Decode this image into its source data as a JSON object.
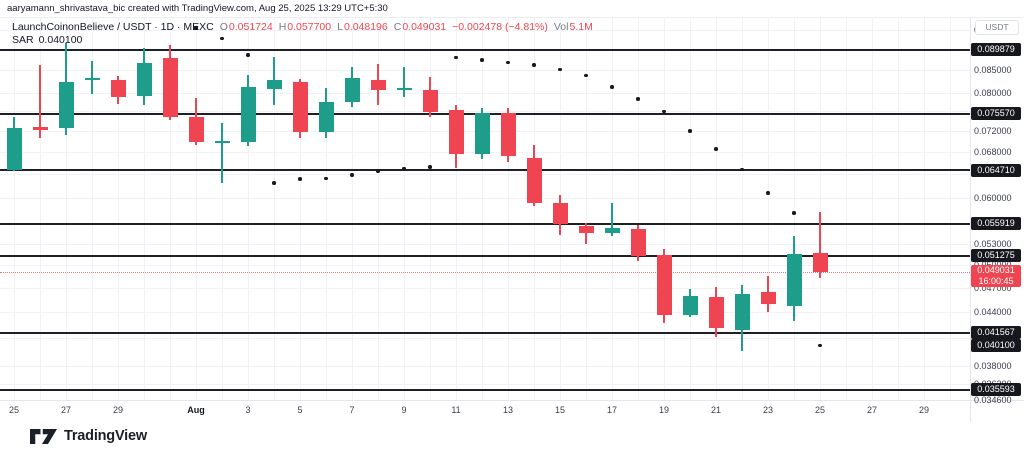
{
  "attribution": "aaryamann_shrivastava_bic created with TradingView.com, Aug 25, 2025 13:29 UTC+5:30",
  "legend": {
    "symbol": "LaunchCoinonBelieve / USDT · 1D · MEXC",
    "open_label": "O",
    "open": "0.051724",
    "high_label": "H",
    "high": "0.057700",
    "low_label": "L",
    "low": "0.048196",
    "close_label": "C",
    "close": "0.049031",
    "change": "−0.002478 (−4.81%)",
    "vol_label": "Vol",
    "volume": "5.1M",
    "indicator_name": "SAR",
    "indicator_value": "0.040100"
  },
  "price_axis": {
    "currency_button": "USDT"
  },
  "footer": {
    "logo_text": "TradingView"
  },
  "colors": {
    "up": "#1d9d8a",
    "down": "#ef4552",
    "level_line": "#1d2026",
    "badge_bg": "#16181d",
    "badge_text": "#ffffff",
    "last_price_badge": "#ef4552",
    "sar_dot": "#17191d",
    "axis_text": "#3a3e49",
    "grid": "#f1f2f6"
  },
  "chart_data": {
    "type": "candlestick",
    "title": "LaunchCoinonBelieve / USDT · 1D · MEXC",
    "exchange": "MEXC",
    "interval": "1D",
    "scale": "log",
    "grid": true,
    "price_axis_visible_range": [
      0.0346,
      0.0936
    ],
    "grid_tick_values": [
      0.095,
      0.09,
      0.085,
      0.08,
      0.076,
      0.072,
      0.068,
      0.064,
      0.06,
      0.056,
      0.053,
      0.05,
      0.047,
      0.044,
      0.041,
      0.038,
      0.0362,
      0.0346
    ],
    "price_labels": [
      {
        "value": 0.095,
        "label": "0.095000"
      },
      {
        "value": 0.085,
        "label": "0.085000"
      },
      {
        "value": 0.08,
        "label": "0.080000"
      },
      {
        "value": 0.072,
        "label": "0.072000"
      },
      {
        "value": 0.068,
        "label": "0.068000"
      },
      {
        "value": 0.06,
        "label": "0.060000"
      },
      {
        "value": 0.053,
        "label": "0.053000"
      },
      {
        "value": 0.05,
        "label": "0.050000"
      },
      {
        "value": 0.047,
        "label": "0.047000"
      },
      {
        "value": 0.044,
        "label": "0.044000"
      },
      {
        "value": 0.038,
        "label": "0.038000"
      },
      {
        "value": 0.0362,
        "label": "0.036200"
      },
      {
        "value": 0.0346,
        "label": "0.034600"
      }
    ],
    "time_labels": [
      {
        "label": "25",
        "x_index": 0
      },
      {
        "label": "27",
        "x_index": 2
      },
      {
        "label": "29",
        "x_index": 4
      },
      {
        "label": "Aug",
        "x_index": 7,
        "month": true
      },
      {
        "label": "3",
        "x_index": 9
      },
      {
        "label": "5",
        "x_index": 11
      },
      {
        "label": "7",
        "x_index": 13
      },
      {
        "label": "9",
        "x_index": 15
      },
      {
        "label": "11",
        "x_index": 17
      },
      {
        "label": "13",
        "x_index": 19
      },
      {
        "label": "15",
        "x_index": 21
      },
      {
        "label": "17",
        "x_index": 23
      },
      {
        "label": "19",
        "x_index": 25
      },
      {
        "label": "21",
        "x_index": 27
      },
      {
        "label": "23",
        "x_index": 29
      },
      {
        "label": "25",
        "x_index": 31
      },
      {
        "label": "27",
        "x_index": 33
      },
      {
        "label": "29",
        "x_index": 35
      }
    ],
    "candles": [
      {
        "date": "Jul 25",
        "o": 0.0647,
        "h": 0.0748,
        "l": 0.0645,
        "c": 0.0726
      },
      {
        "date": "Jul 26",
        "o": 0.0728,
        "h": 0.0862,
        "l": 0.0706,
        "c": 0.0722
      },
      {
        "date": "Jul 27",
        "o": 0.0727,
        "h": 0.0915,
        "l": 0.0712,
        "c": 0.0824
      },
      {
        "date": "Jul 28",
        "o": 0.083,
        "h": 0.0872,
        "l": 0.0797,
        "c": 0.0833
      },
      {
        "date": "Jul 29",
        "o": 0.0827,
        "h": 0.0838,
        "l": 0.0776,
        "c": 0.0791
      },
      {
        "date": "Jul 30",
        "o": 0.0793,
        "h": 0.0903,
        "l": 0.0773,
        "c": 0.0867
      },
      {
        "date": "Jul 31",
        "o": 0.0879,
        "h": 0.0911,
        "l": 0.0742,
        "c": 0.0749
      },
      {
        "date": "Aug 1",
        "o": 0.0749,
        "h": 0.0788,
        "l": 0.0693,
        "c": 0.0699
      },
      {
        "date": "Aug 2",
        "o": 0.07,
        "h": 0.0736,
        "l": 0.0625,
        "c": 0.0702
      },
      {
        "date": "Aug 3",
        "o": 0.0699,
        "h": 0.0839,
        "l": 0.0691,
        "c": 0.0813
      },
      {
        "date": "Aug 4",
        "o": 0.0809,
        "h": 0.0882,
        "l": 0.0773,
        "c": 0.0828
      },
      {
        "date": "Aug 5",
        "o": 0.0824,
        "h": 0.0831,
        "l": 0.0707,
        "c": 0.0719
      },
      {
        "date": "Aug 6",
        "o": 0.0719,
        "h": 0.081,
        "l": 0.0706,
        "c": 0.078
      },
      {
        "date": "Aug 7",
        "o": 0.078,
        "h": 0.0858,
        "l": 0.0769,
        "c": 0.0832
      },
      {
        "date": "Aug 8",
        "o": 0.0828,
        "h": 0.0866,
        "l": 0.0773,
        "c": 0.0806
      },
      {
        "date": "Aug 9",
        "o": 0.081,
        "h": 0.0858,
        "l": 0.079,
        "c": 0.0811
      },
      {
        "date": "Aug 10",
        "o": 0.0806,
        "h": 0.0835,
        "l": 0.0748,
        "c": 0.0759
      },
      {
        "date": "Aug 11",
        "o": 0.0764,
        "h": 0.0773,
        "l": 0.0651,
        "c": 0.0676
      },
      {
        "date": "Aug 12",
        "o": 0.0676,
        "h": 0.0767,
        "l": 0.0668,
        "c": 0.0757
      },
      {
        "date": "Aug 13",
        "o": 0.0757,
        "h": 0.0767,
        "l": 0.0662,
        "c": 0.0673
      },
      {
        "date": "Aug 14",
        "o": 0.067,
        "h": 0.0694,
        "l": 0.0587,
        "c": 0.0592
      },
      {
        "date": "Aug 15",
        "o": 0.0592,
        "h": 0.0606,
        "l": 0.0543,
        "c": 0.0559
      },
      {
        "date": "Aug 16",
        "o": 0.0556,
        "h": 0.0561,
        "l": 0.053,
        "c": 0.0545
      },
      {
        "date": "Aug 17",
        "o": 0.0545,
        "h": 0.0592,
        "l": 0.0541,
        "c": 0.0553
      },
      {
        "date": "Aug 18",
        "o": 0.0552,
        "h": 0.0557,
        "l": 0.0505,
        "c": 0.0512
      },
      {
        "date": "Aug 19",
        "o": 0.0514,
        "h": 0.0522,
        "l": 0.0427,
        "c": 0.0436
      },
      {
        "date": "Aug 20",
        "o": 0.0436,
        "h": 0.0469,
        "l": 0.0434,
        "c": 0.046
      },
      {
        "date": "Aug 21",
        "o": 0.0458,
        "h": 0.0471,
        "l": 0.0411,
        "c": 0.0421
      },
      {
        "date": "Aug 22",
        "o": 0.0419,
        "h": 0.0473,
        "l": 0.0395,
        "c": 0.0462
      },
      {
        "date": "Aug 23",
        "o": 0.0464,
        "h": 0.0485,
        "l": 0.044,
        "c": 0.0449
      },
      {
        "date": "Aug 24",
        "o": 0.0447,
        "h": 0.0541,
        "l": 0.0429,
        "c": 0.0515
      },
      {
        "date": "Aug 25",
        "o": 0.051724,
        "h": 0.0577,
        "l": 0.048196,
        "c": 0.049031
      }
    ],
    "sar": [
      {
        "date": "Aug 1",
        "value": 0.0954
      },
      {
        "date": "Aug 2",
        "value": 0.0926
      },
      {
        "date": "Aug 3",
        "value": 0.0886
      },
      {
        "date": "Aug 4",
        "value": 0.0625
      },
      {
        "date": "Aug 5",
        "value": 0.0632
      },
      {
        "date": "Aug 6",
        "value": 0.0633
      },
      {
        "date": "Aug 7",
        "value": 0.0639
      },
      {
        "date": "Aug 8",
        "value": 0.0646
      },
      {
        "date": "Aug 9",
        "value": 0.065
      },
      {
        "date": "Aug 10",
        "value": 0.0653
      },
      {
        "date": "Aug 11",
        "value": 0.088
      },
      {
        "date": "Aug 12",
        "value": 0.0874
      },
      {
        "date": "Aug 13",
        "value": 0.0868
      },
      {
        "date": "Aug 14",
        "value": 0.0862
      },
      {
        "date": "Aug 15",
        "value": 0.0851
      },
      {
        "date": "Aug 16",
        "value": 0.0838
      },
      {
        "date": "Aug 17",
        "value": 0.0812
      },
      {
        "date": "Aug 18",
        "value": 0.0786
      },
      {
        "date": "Aug 19",
        "value": 0.0759
      },
      {
        "date": "Aug 20",
        "value": 0.072
      },
      {
        "date": "Aug 21",
        "value": 0.0686
      },
      {
        "date": "Aug 22",
        "value": 0.0648
      },
      {
        "date": "Aug 23",
        "value": 0.0608
      },
      {
        "date": "Aug 24",
        "value": 0.0576
      },
      {
        "date": "Aug 25",
        "value": 0.0401
      }
    ],
    "levels": [
      {
        "price": 0.089879,
        "label": "0.089879"
      },
      {
        "price": 0.07557,
        "label": "0.075570"
      },
      {
        "price": 0.06471,
        "label": "0.064710"
      },
      {
        "price": 0.055919,
        "label": "0.055919"
      },
      {
        "price": 0.051275,
        "label": "0.051275"
      },
      {
        "price": 0.041567,
        "label": "0.041567"
      },
      {
        "price": 0.035593,
        "label": "0.035593"
      }
    ],
    "last_price": {
      "value": 0.049031,
      "label": "0.049031",
      "countdown": "16:00:45"
    },
    "indicator_badge": {
      "value": 0.0401,
      "label": "0.040100"
    }
  }
}
